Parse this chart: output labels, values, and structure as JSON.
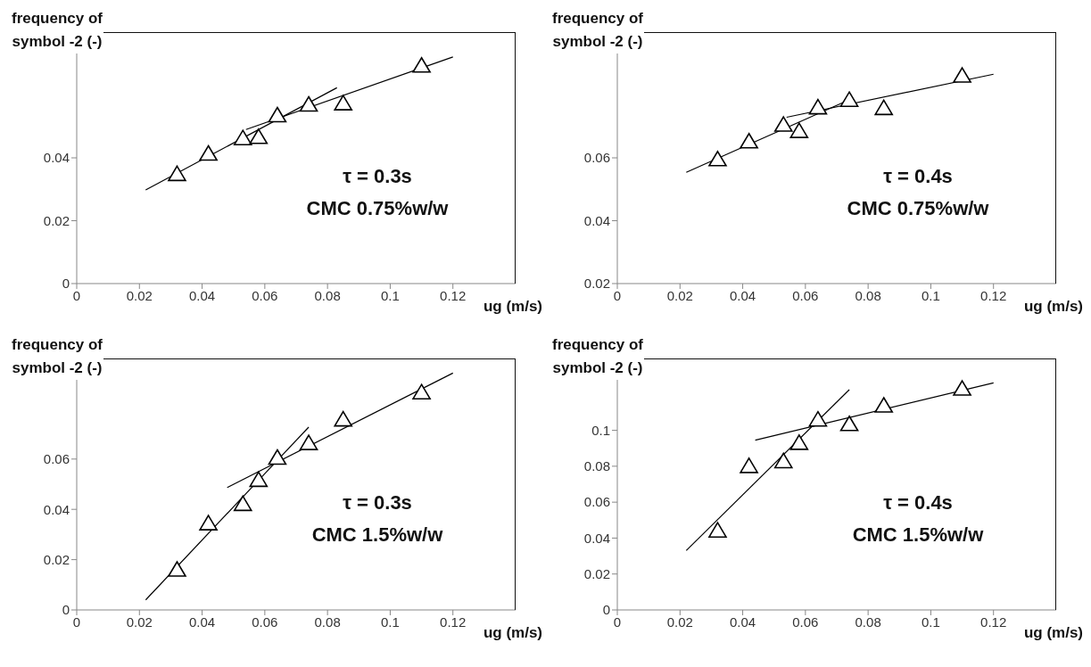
{
  "chart_data": [
    {
      "type": "scatter",
      "ylabel": "frequency of symbol -2 (-)",
      "xlabel": "ug (m/s)",
      "xlim": [
        0,
        0.14
      ],
      "xticks": [
        0,
        0.02,
        0.04,
        0.06,
        0.08,
        0.1,
        0.12
      ],
      "ylim": [
        0,
        0.08
      ],
      "yticks": [
        0,
        0.02,
        0.04
      ],
      "annotations": [
        "τ = 0.3s",
        "CMC 0.75%w/w"
      ],
      "series": [
        {
          "color": "#000000",
          "marker": "triangle",
          "x": [
            0.032,
            0.042,
            0.053,
            0.058,
            0.064,
            0.074,
            0.085,
            0.11
          ],
          "values": [
            0.0345,
            0.041,
            0.0459,
            0.0463,
            0.0532,
            0.0566,
            0.057,
            0.069
          ]
        },
        {
          "type": "line",
          "color": "#000000",
          "x": [
            0.022,
            0.083
          ],
          "values": [
            0.0298,
            0.0623
          ]
        },
        {
          "type": "line",
          "color": "#000000",
          "x": [
            0.054,
            0.12
          ],
          "values": [
            0.049,
            0.0721
          ]
        }
      ]
    },
    {
      "type": "scatter",
      "ylabel": "frequency of symbol -2 (-)",
      "xlabel": "ug (m/s)",
      "xlim": [
        0,
        0.14
      ],
      "xticks": [
        0,
        0.02,
        0.04,
        0.06,
        0.08,
        0.1,
        0.12
      ],
      "ylim": [
        0.02,
        0.1
      ],
      "yticks": [
        0.02,
        0.04,
        0.06
      ],
      "annotations": [
        "τ = 0.4s",
        "CMC 0.75%w/w"
      ],
      "series": [
        {
          "color": "#000000",
          "marker": "triangle",
          "x": [
            0.032,
            0.042,
            0.053,
            0.058,
            0.064,
            0.074,
            0.085,
            0.11
          ],
          "values": [
            0.0592,
            0.0649,
            0.0702,
            0.0682,
            0.0757,
            0.0781,
            0.0755,
            0.0858
          ]
        },
        {
          "type": "line",
          "color": "#000000",
          "x": [
            0.022,
            0.072
          ],
          "values": [
            0.0554,
            0.0776
          ]
        },
        {
          "type": "line",
          "color": "#000000",
          "x": [
            0.054,
            0.12
          ],
          "values": [
            0.0729,
            0.0866
          ]
        }
      ]
    },
    {
      "type": "scatter",
      "ylabel": "frequency of symbol -2 (-)",
      "xlabel": "ug (m/s)",
      "xlim": [
        0,
        0.14
      ],
      "xticks": [
        0,
        0.02,
        0.04,
        0.06,
        0.08,
        0.1,
        0.12
      ],
      "ylim": [
        0,
        0.1
      ],
      "yticks": [
        0,
        0.02,
        0.04,
        0.06
      ],
      "annotations": [
        "τ = 0.3s",
        "CMC 1.5%w/w"
      ],
      "series": [
        {
          "color": "#000000",
          "marker": "triangle",
          "x": [
            0.032,
            0.042,
            0.053,
            0.058,
            0.064,
            0.074,
            0.085,
            0.11
          ],
          "values": [
            0.0156,
            0.034,
            0.0417,
            0.0513,
            0.0601,
            0.0659,
            0.0753,
            0.0861
          ]
        },
        {
          "type": "line",
          "color": "#000000",
          "x": [
            0.022,
            0.074
          ],
          "values": [
            0.004,
            0.0727
          ]
        },
        {
          "type": "line",
          "color": "#000000",
          "x": [
            0.048,
            0.12
          ],
          "values": [
            0.0487,
            0.0942
          ]
        }
      ]
    },
    {
      "type": "scatter",
      "ylabel": "frequency of symbol -2 (-)",
      "xlabel": "ug (m/s)",
      "xlim": [
        0,
        0.14
      ],
      "xticks": [
        0,
        0.02,
        0.04,
        0.06,
        0.08,
        0.1,
        0.12
      ],
      "ylim": [
        0,
        0.14
      ],
      "yticks": [
        0,
        0.02,
        0.04,
        0.06,
        0.08,
        0.1
      ],
      "annotations": [
        "τ = 0.4s",
        "CMC 1.5%w/w"
      ],
      "series": [
        {
          "color": "#000000",
          "marker": "triangle",
          "x": [
            0.032,
            0.042,
            0.053,
            0.058,
            0.064,
            0.074,
            0.085,
            0.11
          ],
          "values": [
            0.0436,
            0.0795,
            0.0822,
            0.0924,
            0.1054,
            0.1029,
            0.1132,
            0.1226
          ]
        },
        {
          "type": "line",
          "color": "#000000",
          "x": [
            0.022,
            0.074
          ],
          "values": [
            0.0331,
            0.1226
          ]
        },
        {
          "type": "line",
          "color": "#000000",
          "x": [
            0.044,
            0.12
          ],
          "values": [
            0.0945,
            0.1264
          ]
        }
      ]
    }
  ]
}
